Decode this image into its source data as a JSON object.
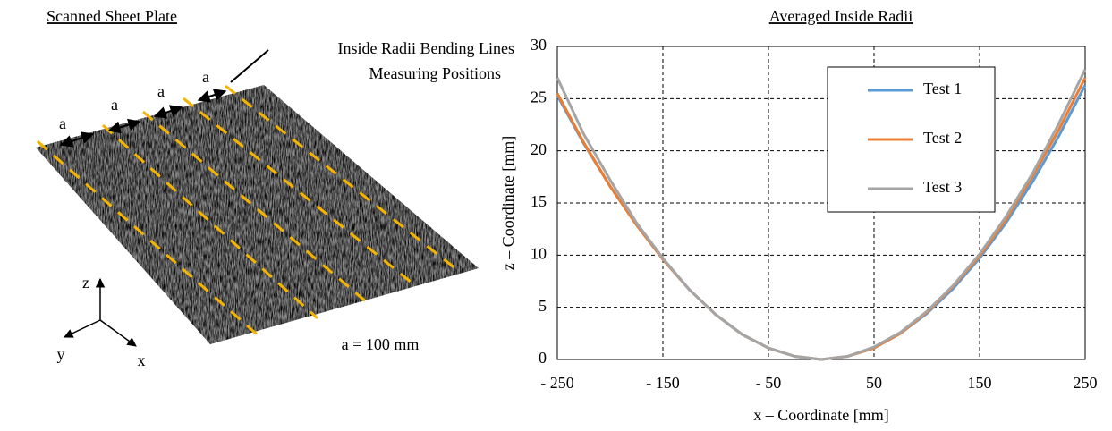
{
  "scan_panel": {
    "title": "Scanned Sheet Plate",
    "annotation_lines": [
      "Inside Radii Bending Lines",
      "Measuring Positions"
    ],
    "spacing_labels": [
      "a",
      "a",
      "a",
      "a"
    ],
    "scale_note": "a = 100 mm",
    "axes": [
      "z",
      "y",
      "x"
    ]
  },
  "chart_data": {
    "type": "line",
    "title": "Averaged Inside Radii",
    "x_label": "x – Coordinate [mm]",
    "y_label": "z – Coordinate [mm]",
    "x": [
      -250,
      -225,
      -200,
      -175,
      -150,
      -125,
      -100,
      -75,
      -50,
      -25,
      0,
      25,
      50,
      75,
      100,
      125,
      150,
      175,
      200,
      225,
      250
    ],
    "series": [
      {
        "name": "Test 1",
        "color": "#5b9bd5",
        "values": [
          25.3,
          20.7,
          16.6,
          12.9,
          9.6,
          6.7,
          4.3,
          2.4,
          1.1,
          0.3,
          0,
          0.3,
          1.1,
          2.5,
          4.4,
          6.8,
          9.7,
          13.1,
          17.0,
          21.4,
          26.3
        ]
      },
      {
        "name": "Test 2",
        "color": "#ed7d31",
        "values": [
          25.5,
          20.8,
          16.6,
          12.9,
          9.6,
          6.7,
          4.3,
          2.4,
          1.1,
          0.3,
          0,
          0.3,
          1.1,
          2.5,
          4.5,
          7.0,
          9.9,
          13.4,
          17.5,
          22.0,
          27.0
        ]
      },
      {
        "name": "Test 3",
        "color": "#a5a5a5",
        "values": [
          27.0,
          21.6,
          17.2,
          13.1,
          9.7,
          6.7,
          4.3,
          2.4,
          1.1,
          0.3,
          0,
          0.3,
          1.2,
          2.6,
          4.6,
          7.1,
          10.1,
          13.7,
          17.8,
          22.6,
          27.8
        ]
      }
    ],
    "xlim": [
      -250,
      250
    ],
    "ylim": [
      0,
      30
    ],
    "xticks": [
      {
        "value": -250,
        "label": "- 250"
      },
      {
        "value": -150,
        "label": "- 150"
      },
      {
        "value": -50,
        "label": "- 50"
      },
      50,
      150,
      250
    ],
    "yticks": [
      0,
      5,
      10,
      15,
      20,
      25,
      30
    ],
    "grid": true
  }
}
